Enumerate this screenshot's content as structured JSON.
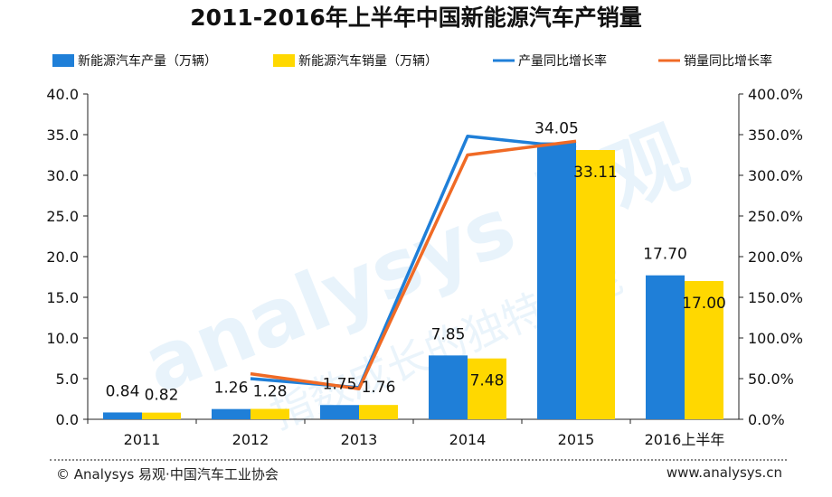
{
  "chart_data": {
    "type": "bar",
    "title": "2011-2016年上半年中国新能源汽车产销量",
    "categories": [
      "2011",
      "2012",
      "2013",
      "2014",
      "2015",
      "2016上半年"
    ],
    "series": [
      {
        "name": "新能源汽车产量（万辆）",
        "kind": "bar",
        "axis": "left",
        "color": "#1f7fd8",
        "values": [
          0.84,
          1.26,
          1.75,
          7.85,
          34.05,
          17.7
        ],
        "labels": [
          "0.84",
          "1.26",
          "1.75",
          "7.85",
          "34.05",
          "17.70"
        ]
      },
      {
        "name": "新能源汽车销量（万辆）",
        "kind": "bar",
        "axis": "left",
        "color": "#ffd800",
        "values": [
          0.82,
          1.28,
          1.76,
          7.48,
          33.11,
          17.0
        ],
        "labels": [
          "0.82",
          "1.28",
          "1.76",
          "7.48",
          "33.11",
          "17.00"
        ]
      },
      {
        "name": "产量同比增长率",
        "kind": "line",
        "axis": "right",
        "color": "#1f7fd8",
        "values": [
          null,
          50.0,
          39.0,
          348.0,
          334.0,
          null
        ]
      },
      {
        "name": "销量同比增长率",
        "kind": "line",
        "axis": "right",
        "color": "#f06a25",
        "values": [
          null,
          56.0,
          37.5,
          325.0,
          342.0,
          null
        ]
      }
    ],
    "yleft": {
      "min": 0,
      "max": 40,
      "ticks": [
        "0.0",
        "5.0",
        "10.0",
        "15.0",
        "20.0",
        "25.0",
        "30.0",
        "35.0",
        "40.0"
      ]
    },
    "yright": {
      "min": 0,
      "max": 400,
      "ticks": [
        "0.0%",
        "50.0%",
        "100.0%",
        "150.0%",
        "200.0%",
        "250.0%",
        "300.0%",
        "350.0%",
        "400.0%"
      ]
    },
    "legend": "top",
    "grid": false
  },
  "watermark": {
    "text": "analysys 易观",
    "sub": "指数成长的独特动能"
  },
  "footer": {
    "source": "© Analysys 易观·中国汽车工业协会",
    "url": "www.analysys.cn"
  }
}
